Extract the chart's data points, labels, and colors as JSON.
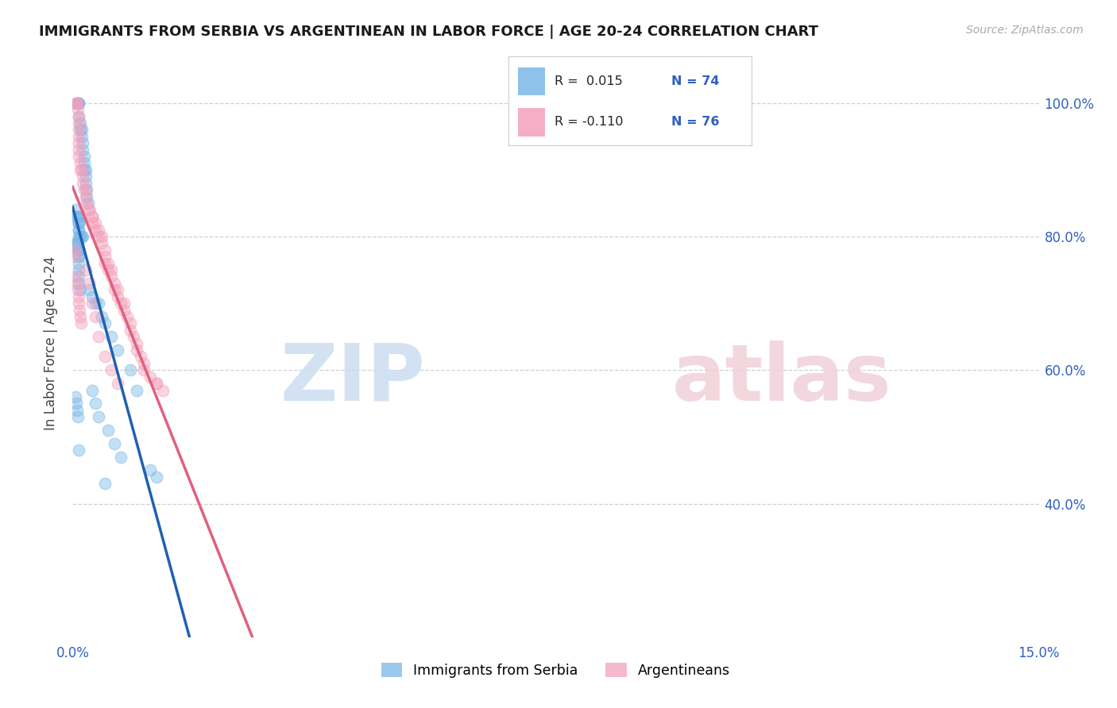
{
  "title": "IMMIGRANTS FROM SERBIA VS ARGENTINEAN IN LABOR FORCE | AGE 20-24 CORRELATION CHART",
  "source": "Source: ZipAtlas.com",
  "ylabel": "In Labor Force | Age 20-24",
  "xlim": [
    0.0,
    0.15
  ],
  "ylim": [
    0.2,
    1.08
  ],
  "x_tick_positions": [
    0.0,
    0.015,
    0.03,
    0.045,
    0.06,
    0.075,
    0.09,
    0.105,
    0.12,
    0.135,
    0.15
  ],
  "x_tick_labels": [
    "0.0%",
    "",
    "",
    "",
    "",
    "",
    "",
    "",
    "",
    "",
    "15.0%"
  ],
  "y_tick_positions": [
    0.4,
    0.6,
    0.8,
    1.0
  ],
  "y_tick_labels_right": [
    "40.0%",
    "60.0%",
    "80.0%",
    "100.0%"
  ],
  "legend_r_blue": "R =  0.015",
  "legend_n_blue": "N = 74",
  "legend_r_pink": "R = -0.110",
  "legend_n_pink": "N = 76",
  "blue_scatter_color": "#7ab8e8",
  "pink_scatter_color": "#f4a0bc",
  "blue_line_color": "#2060b0",
  "pink_line_color": "#e06080",
  "grid_color": "#cccccc",
  "background_color": "#ffffff",
  "serbia_x": [
    0.0008,
    0.0008,
    0.001,
    0.001,
    0.001,
    0.0012,
    0.0012,
    0.0014,
    0.0014,
    0.0016,
    0.0016,
    0.0018,
    0.0018,
    0.0018,
    0.002,
    0.002,
    0.002,
    0.0022,
    0.0022,
    0.0024,
    0.0005,
    0.0006,
    0.0007,
    0.0008,
    0.0009,
    0.001,
    0.001,
    0.001,
    0.001,
    0.001,
    0.001,
    0.0012,
    0.0012,
    0.0014,
    0.0015,
    0.0006,
    0.0007,
    0.0007,
    0.0008,
    0.0008,
    0.0009,
    0.0009,
    0.001,
    0.001,
    0.001,
    0.001,
    0.001,
    0.001,
    0.001,
    0.0012,
    0.0025,
    0.003,
    0.0035,
    0.004,
    0.0045,
    0.005,
    0.006,
    0.007,
    0.009,
    0.01,
    0.003,
    0.0035,
    0.004,
    0.0055,
    0.0065,
    0.0075,
    0.001,
    0.012,
    0.013,
    0.005,
    0.0005,
    0.0006,
    0.0007,
    0.0008
  ],
  "serbia_y": [
    1.0,
    1.0,
    1.0,
    1.0,
    0.98,
    0.97,
    0.96,
    0.96,
    0.95,
    0.94,
    0.93,
    0.92,
    0.91,
    0.9,
    0.9,
    0.89,
    0.88,
    0.87,
    0.86,
    0.85,
    0.84,
    0.83,
    0.83,
    0.83,
    0.83,
    0.82,
    0.82,
    0.82,
    0.81,
    0.81,
    0.8,
    0.8,
    0.8,
    0.8,
    0.8,
    0.79,
    0.79,
    0.79,
    0.79,
    0.78,
    0.78,
    0.78,
    0.78,
    0.77,
    0.77,
    0.76,
    0.75,
    0.74,
    0.73,
    0.72,
    0.72,
    0.71,
    0.7,
    0.7,
    0.68,
    0.67,
    0.65,
    0.63,
    0.6,
    0.57,
    0.57,
    0.55,
    0.53,
    0.51,
    0.49,
    0.47,
    0.48,
    0.45,
    0.44,
    0.43,
    0.56,
    0.55,
    0.54,
    0.53
  ],
  "argentina_x": [
    0.0005,
    0.0006,
    0.0007,
    0.0008,
    0.0009,
    0.001,
    0.001,
    0.001,
    0.001,
    0.001,
    0.001,
    0.0012,
    0.0012,
    0.0014,
    0.0015,
    0.0016,
    0.0018,
    0.002,
    0.002,
    0.0022,
    0.0025,
    0.0025,
    0.003,
    0.003,
    0.003,
    0.0035,
    0.0035,
    0.004,
    0.004,
    0.0045,
    0.0045,
    0.005,
    0.005,
    0.005,
    0.0055,
    0.0055,
    0.006,
    0.006,
    0.0065,
    0.0065,
    0.007,
    0.007,
    0.0075,
    0.008,
    0.008,
    0.0085,
    0.009,
    0.009,
    0.0095,
    0.01,
    0.01,
    0.0105,
    0.011,
    0.011,
    0.012,
    0.013,
    0.013,
    0.014,
    0.0003,
    0.0004,
    0.0006,
    0.0007,
    0.0008,
    0.0009,
    0.001,
    0.0011,
    0.0012,
    0.0013,
    0.002,
    0.0025,
    0.003,
    0.0035,
    0.004,
    0.005,
    0.006,
    0.007
  ],
  "argentina_y": [
    1.0,
    1.0,
    1.0,
    0.99,
    0.98,
    0.97,
    0.96,
    0.95,
    0.94,
    0.93,
    0.92,
    0.91,
    0.9,
    0.9,
    0.89,
    0.88,
    0.87,
    0.87,
    0.86,
    0.85,
    0.84,
    0.84,
    0.83,
    0.83,
    0.82,
    0.82,
    0.81,
    0.81,
    0.8,
    0.8,
    0.79,
    0.78,
    0.77,
    0.76,
    0.76,
    0.75,
    0.75,
    0.74,
    0.73,
    0.72,
    0.72,
    0.71,
    0.7,
    0.7,
    0.69,
    0.68,
    0.67,
    0.66,
    0.65,
    0.64,
    0.63,
    0.62,
    0.61,
    0.6,
    0.59,
    0.58,
    0.58,
    0.57,
    0.78,
    0.77,
    0.74,
    0.73,
    0.72,
    0.71,
    0.7,
    0.69,
    0.68,
    0.67,
    0.75,
    0.73,
    0.7,
    0.68,
    0.65,
    0.62,
    0.6,
    0.58
  ]
}
